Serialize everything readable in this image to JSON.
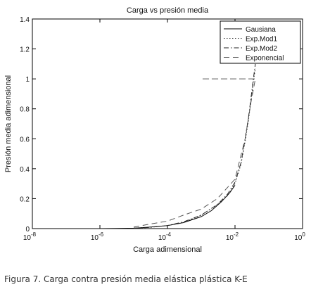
{
  "caption": "Figura 7. Carga contra presión media elástica plástica K-E",
  "chart_data": {
    "type": "line",
    "title": "Carga vs presión media",
    "xlabel": "Carga adimensional",
    "ylabel": "Presión media adimensional",
    "xscale": "log",
    "xlim": [
      1e-08,
      1
    ],
    "ylim": [
      0,
      1.4
    ],
    "x_ticks": [
      {
        "value": 1e-08,
        "base": "10",
        "exp": "-8"
      },
      {
        "value": 1e-06,
        "base": "10",
        "exp": "-6"
      },
      {
        "value": 0.0001,
        "base": "10",
        "exp": "-4"
      },
      {
        "value": 0.01,
        "base": "10",
        "exp": "-2"
      },
      {
        "value": 1,
        "base": "10",
        "exp": "0"
      }
    ],
    "y_ticks": [
      "0",
      "0.2",
      "0.4",
      "0.6",
      "0.8",
      "1",
      "1.2",
      "1.4"
    ],
    "grid": false,
    "legend_position": "top-right",
    "series": [
      {
        "name": "Gausiana",
        "style": "solid",
        "x": [
          1e-08,
          1e-07,
          1e-06,
          3e-06,
          1e-05,
          3e-05,
          0.0001,
          0.0003,
          0.001,
          0.002,
          0.004,
          0.007,
          0.01
        ],
        "y": [
          0.0,
          0.0,
          0.0,
          0.001,
          0.003,
          0.01,
          0.02,
          0.04,
          0.08,
          0.12,
          0.18,
          0.24,
          0.29
        ]
      },
      {
        "name": "Exp.Mod1",
        "style": "dotted",
        "x": [
          1e-05,
          3e-05,
          0.0001,
          0.0003,
          0.001,
          0.003,
          0.006,
          0.01,
          0.015,
          0.02,
          0.025,
          0.03,
          0.035,
          0.04
        ],
        "y": [
          0.003,
          0.008,
          0.02,
          0.04,
          0.09,
          0.16,
          0.22,
          0.3,
          0.43,
          0.58,
          0.72,
          0.86,
          0.98,
          1.07
        ]
      },
      {
        "name": "Exp.Mod2",
        "style": "dashdot",
        "x": [
          1e-05,
          3e-05,
          0.0001,
          0.0003,
          0.001,
          0.003,
          0.006,
          0.01,
          0.015,
          0.02,
          0.025,
          0.03,
          0.035,
          0.04
        ],
        "y": [
          0.003,
          0.008,
          0.02,
          0.045,
          0.09,
          0.16,
          0.23,
          0.31,
          0.44,
          0.6,
          0.74,
          0.88,
          1.0,
          1.1
        ]
      },
      {
        "name": "Exponencial",
        "style": "dashed",
        "x": [
          1e-05,
          3e-05,
          0.0001,
          0.0003,
          0.001,
          0.003,
          0.01,
          0.02,
          0.03,
          0.04,
          0.001,
          0.04
        ],
        "y": [
          0.01,
          0.03,
          0.05,
          0.09,
          0.13,
          0.2,
          0.33,
          0.6,
          0.85,
          1.0,
          1.0,
          1.0
        ]
      }
    ]
  }
}
